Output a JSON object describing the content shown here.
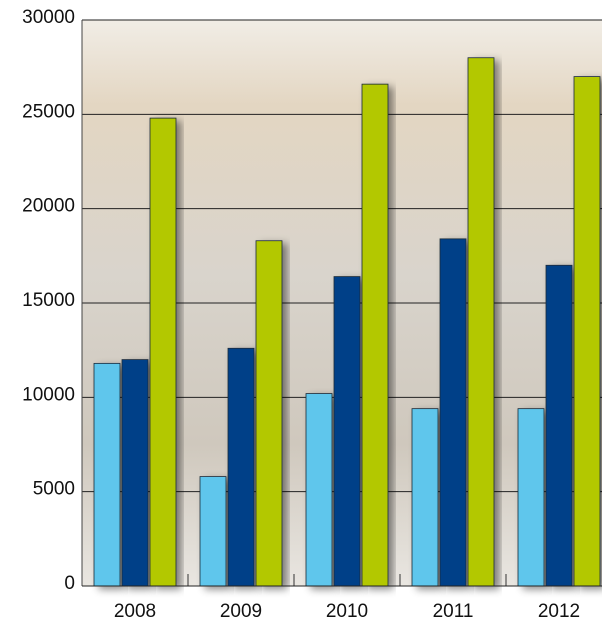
{
  "chart_data": {
    "type": "bar",
    "categories": [
      "2008",
      "2009",
      "2010",
      "2011",
      "2012"
    ],
    "series": [
      {
        "color": "#5ec6ec",
        "values": [
          11800,
          5800,
          10200,
          9400,
          9400
        ]
      },
      {
        "color": "#003f88",
        "values": [
          12000,
          12600,
          16400,
          18400,
          17000
        ]
      },
      {
        "color": "#b3c800",
        "values": [
          24800,
          18300,
          26600,
          28000,
          27000
        ]
      }
    ],
    "ylim": [
      0,
      30000
    ],
    "yticks": [
      0,
      5000,
      10000,
      15000,
      20000,
      25000,
      30000
    ],
    "grid": true
  }
}
